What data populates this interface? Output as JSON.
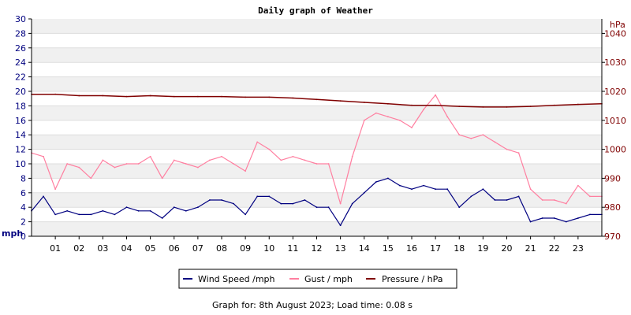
{
  "chart_data": {
    "type": "line",
    "title": "Daily graph of Weather",
    "x_tick_labels": [
      "01",
      "02",
      "03",
      "04",
      "05",
      "06",
      "07",
      "08",
      "09",
      "10",
      "11",
      "12",
      "13",
      "14",
      "15",
      "16",
      "17",
      "18",
      "19",
      "20",
      "21",
      "22",
      "23"
    ],
    "x_range_hours": [
      0,
      24
    ],
    "left_axis": {
      "label": "mph",
      "range": [
        0,
        30
      ],
      "ticks": [
        0,
        2,
        4,
        6,
        8,
        10,
        12,
        14,
        16,
        18,
        20,
        22,
        24,
        26,
        28,
        30
      ],
      "color": "#00007f"
    },
    "right_axis": {
      "label": "hPa",
      "range": [
        970,
        1045
      ],
      "ticks": [
        970,
        980,
        990,
        1000,
        1010,
        1020,
        1030,
        1040
      ],
      "color": "#7f0000"
    },
    "grid": "alternating horizontal bands",
    "series": [
      {
        "name": "Wind Speed /mph",
        "axis": "left",
        "color": "#000080",
        "x": [
          0,
          0.5,
          1,
          1.5,
          2,
          2.5,
          3,
          3.5,
          4,
          4.5,
          5,
          5.5,
          6,
          6.5,
          7,
          7.5,
          8,
          8.5,
          9,
          9.5,
          10,
          10.5,
          11,
          11.5,
          12,
          12.5,
          13,
          13.5,
          14,
          14.5,
          15,
          15.5,
          16,
          16.5,
          17,
          17.5,
          18,
          18.5,
          19,
          19.5,
          20,
          20.5,
          21,
          21.5,
          22,
          22.5,
          23,
          23.5,
          24
        ],
        "values": [
          3.5,
          5.5,
          3.0,
          3.5,
          3.0,
          3.0,
          3.5,
          3.0,
          4.0,
          3.5,
          3.5,
          2.5,
          4.0,
          3.5,
          4.0,
          5.0,
          5.0,
          4.5,
          3.0,
          5.5,
          5.5,
          4.5,
          4.5,
          5.0,
          4.0,
          4.0,
          1.5,
          4.5,
          6.0,
          7.5,
          8.0,
          7.0,
          6.5,
          7.0,
          6.5,
          6.5,
          4.0,
          5.5,
          6.5,
          5.0,
          5.0,
          5.5,
          2.0,
          2.5,
          2.5,
          2.0,
          2.5,
          3.0,
          3.0
        ]
      },
      {
        "name": "Gust / mph",
        "axis": "left",
        "color": "#ff7fa0",
        "x": [
          0,
          0.5,
          1,
          1.5,
          2,
          2.5,
          3,
          3.5,
          4,
          4.5,
          5,
          5.5,
          6,
          6.5,
          7,
          7.5,
          8,
          8.5,
          9,
          9.5,
          10,
          10.5,
          11,
          11.5,
          12,
          12.5,
          13,
          13.5,
          14,
          14.5,
          15,
          15.5,
          16,
          16.5,
          17,
          17.5,
          18,
          18.5,
          19,
          19.5,
          20,
          20.5,
          21,
          21.5,
          22,
          22.5,
          23,
          23.5,
          24
        ],
        "values": [
          11.5,
          11.0,
          6.5,
          10.0,
          9.5,
          8.0,
          10.5,
          9.5,
          10.0,
          10.0,
          11.0,
          8.0,
          10.5,
          10.0,
          9.5,
          10.5,
          11.0,
          10.0,
          9.0,
          13.0,
          12.0,
          10.5,
          11.0,
          10.5,
          10.0,
          10.0,
          4.5,
          11.0,
          16.0,
          17.0,
          16.5,
          16.0,
          15.0,
          17.5,
          19.5,
          16.5,
          14.0,
          13.5,
          14.0,
          13.0,
          12.0,
          11.5,
          6.5,
          5.0,
          5.0,
          4.5,
          7.0,
          5.5,
          5.5
        ]
      },
      {
        "name": "Pressure / hPa",
        "axis": "right",
        "color": "#800000",
        "x": [
          0,
          1,
          2,
          3,
          4,
          5,
          6,
          7,
          8,
          9,
          10,
          11,
          12,
          13,
          14,
          15,
          16,
          17,
          18,
          19,
          20,
          21,
          22,
          23,
          24
        ],
        "values": [
          1019.0,
          1019.0,
          1018.5,
          1018.5,
          1018.2,
          1018.5,
          1018.2,
          1018.2,
          1018.2,
          1018.0,
          1018.0,
          1017.7,
          1017.2,
          1016.7,
          1016.2,
          1015.7,
          1015.2,
          1015.2,
          1014.8,
          1014.6,
          1014.6,
          1014.8,
          1015.2,
          1015.5,
          1015.7
        ]
      }
    ]
  },
  "legend": {
    "items": [
      {
        "label": "Wind Speed /mph",
        "color": "#000080"
      },
      {
        "label": "Gust / mph",
        "color": "#ff7fa0"
      },
      {
        "label": "Pressure / hPa",
        "color": "#800000"
      }
    ]
  },
  "footer": {
    "text": "Graph for: 8th August 2023; Load time: 0.08 s"
  }
}
